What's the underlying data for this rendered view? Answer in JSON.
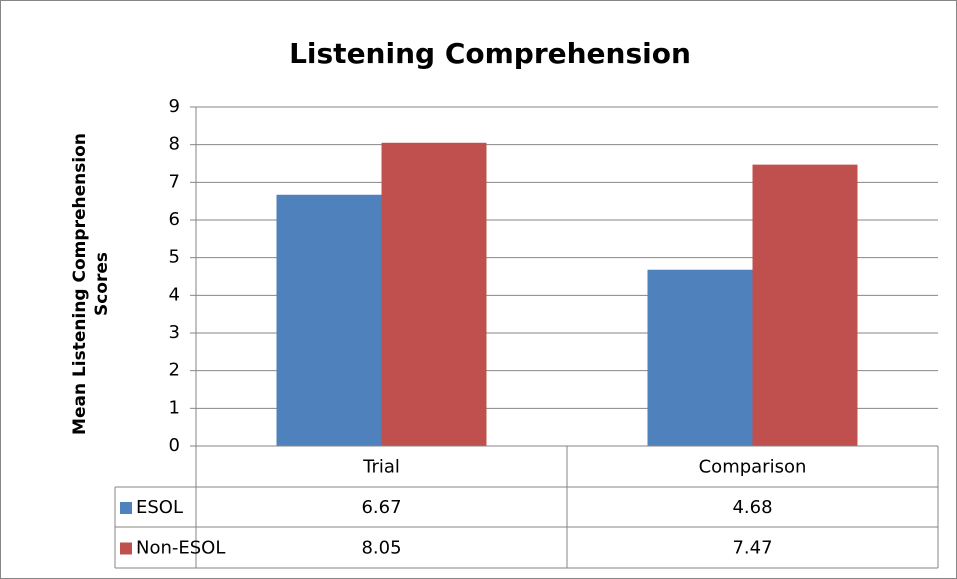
{
  "chart_data": {
    "type": "bar",
    "title": "Listening Comprehension",
    "y_label": "Mean Listening Comprehension Scores",
    "categories": [
      "Trial",
      "Comparison"
    ],
    "series": [
      {
        "name": "ESOL",
        "color": "#4f81bd",
        "values": [
          6.67,
          4.68
        ]
      },
      {
        "name": "Non-ESOL",
        "color": "#c0504d",
        "values": [
          8.05,
          7.47
        ]
      }
    ],
    "ylim": [
      0,
      9
    ],
    "yticks": [
      0,
      1,
      2,
      3,
      4,
      5,
      6,
      7,
      8,
      9
    ],
    "grid": true,
    "data_table": true
  }
}
